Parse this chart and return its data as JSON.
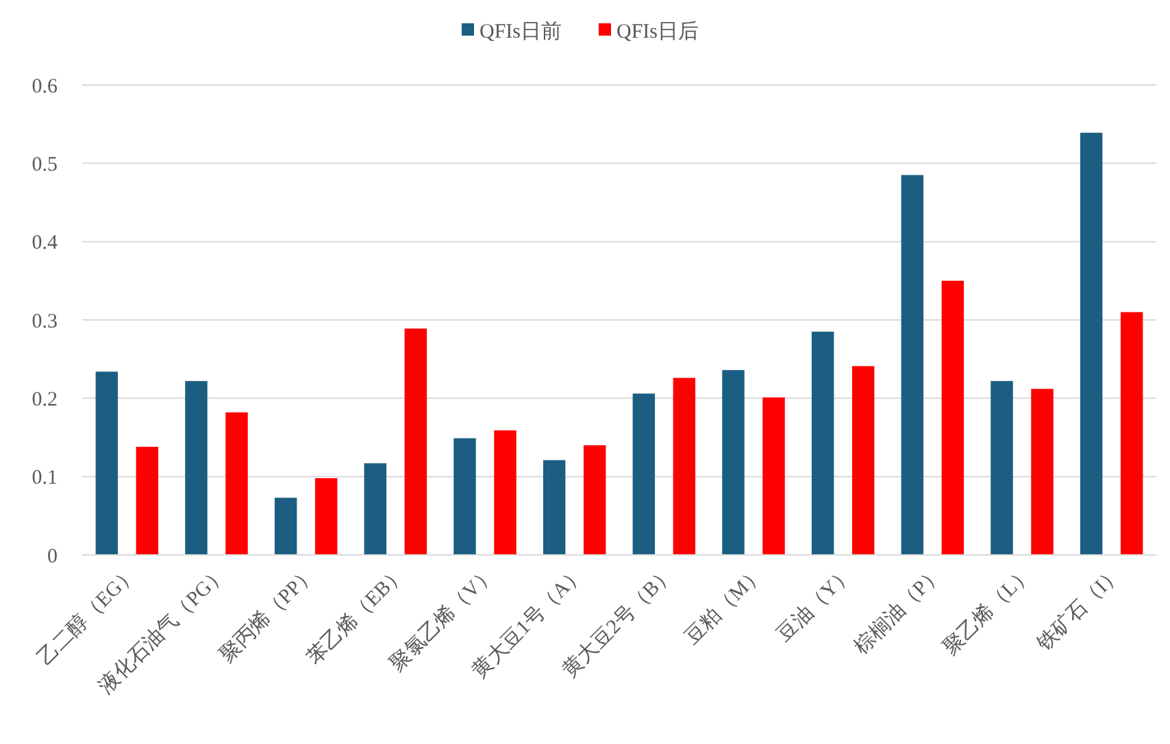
{
  "chart_data": {
    "type": "bar",
    "categories": [
      "乙二醇（EG）",
      "液化石油气（PG）",
      "聚丙烯（PP）",
      "苯乙烯（EB）",
      "聚氯乙烯（V）",
      "黄大豆1号（A）",
      "黄大豆2号（B）",
      "豆粕（M）",
      "豆油（Y）",
      "棕榈油（P）",
      "聚乙烯（L）",
      "铁矿石（I）"
    ],
    "series": [
      {
        "name": "QFIs日前",
        "color": "#1b5e82",
        "values": [
          0.234,
          0.222,
          0.073,
          0.117,
          0.149,
          0.121,
          0.206,
          0.236,
          0.285,
          0.485,
          0.222,
          0.539
        ]
      },
      {
        "name": "QFIs日后",
        "color": "#ff0000",
        "values": [
          0.138,
          0.182,
          0.098,
          0.289,
          0.159,
          0.14,
          0.226,
          0.201,
          0.241,
          0.35,
          0.212,
          0.31
        ]
      }
    ],
    "ylim": [
      0,
      0.6
    ],
    "yticks": [
      0,
      0.1,
      0.2,
      0.3,
      0.4,
      0.5,
      0.6
    ],
    "grid": "y",
    "legend": "top"
  }
}
